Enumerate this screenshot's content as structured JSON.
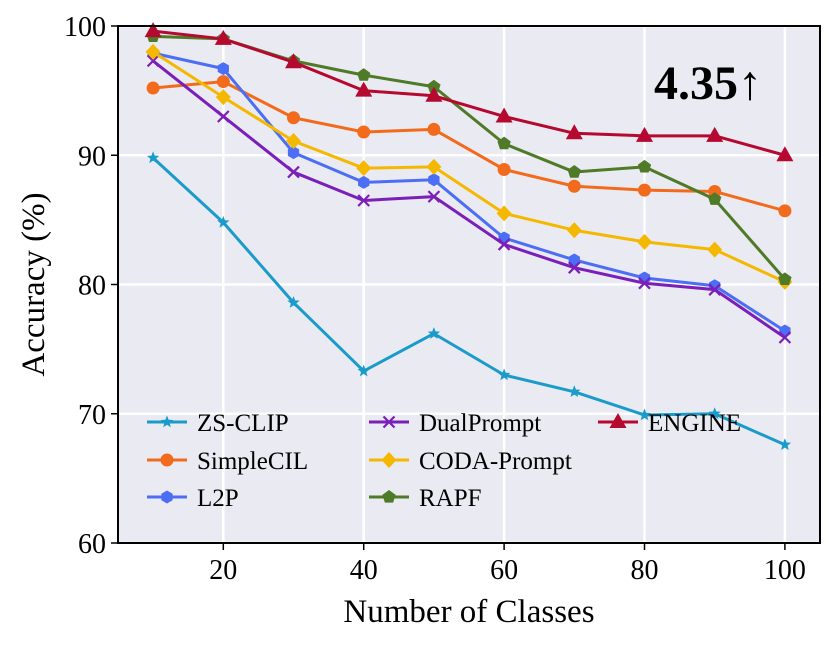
{
  "chart_data": {
    "type": "line",
    "title": "",
    "xlabel": "Number of Classes",
    "ylabel": "Accuracy (%)",
    "xlim": [
      5,
      105
    ],
    "ylim": [
      60,
      100
    ],
    "xticks": [
      20,
      40,
      60,
      80,
      100
    ],
    "yticks": [
      60,
      70,
      80,
      90,
      100
    ],
    "grid": true,
    "legend_position": "lower-left",
    "annotation": "4.35↑",
    "x": [
      10,
      20,
      30,
      40,
      50,
      60,
      70,
      80,
      90,
      100
    ],
    "series": [
      {
        "name": "ZS-CLIP",
        "color": "#1a9bc9",
        "marker": "star",
        "values": [
          89.8,
          84.8,
          78.6,
          73.3,
          76.2,
          73.0,
          71.7,
          69.9,
          70.0,
          67.6
        ]
      },
      {
        "name": "SimpleCIL",
        "color": "#f26b1d",
        "marker": "circle",
        "values": [
          95.2,
          95.7,
          92.9,
          91.8,
          92.0,
          88.9,
          87.6,
          87.3,
          87.2,
          85.7
        ]
      },
      {
        "name": "L2P",
        "color": "#4c6ef5",
        "marker": "hexagon",
        "values": [
          97.9,
          96.7,
          90.2,
          87.9,
          88.1,
          83.6,
          81.9,
          80.5,
          79.9,
          76.4
        ]
      },
      {
        "name": "DualPrompt",
        "color": "#7a1fb8",
        "marker": "x",
        "values": [
          97.3,
          93.0,
          88.7,
          86.5,
          86.8,
          83.1,
          81.3,
          80.1,
          79.6,
          75.9
        ]
      },
      {
        "name": "CODA-Prompt",
        "color": "#f5b800",
        "marker": "diamond",
        "values": [
          98.0,
          94.5,
          91.1,
          89.0,
          89.1,
          85.5,
          84.2,
          83.3,
          82.7,
          80.2
        ]
      },
      {
        "name": "RAPF",
        "color": "#4f7a28",
        "marker": "pentagon",
        "values": [
          99.2,
          99.0,
          97.3,
          96.2,
          95.3,
          90.9,
          88.7,
          89.1,
          86.6,
          80.4
        ]
      },
      {
        "name": "ENGINE",
        "color": "#b5092f",
        "marker": "triangle",
        "values": [
          99.6,
          99.0,
          97.2,
          95.0,
          94.6,
          93.0,
          91.7,
          91.5,
          91.5,
          90.0
        ]
      }
    ]
  }
}
